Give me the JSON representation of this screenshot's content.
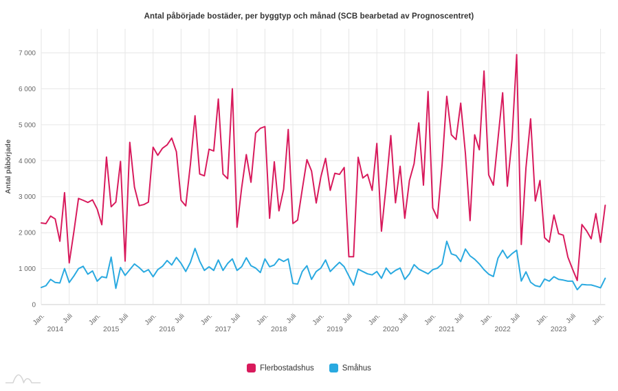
{
  "chart_data": {
    "type": "line",
    "title": "Antal påbörjade bostäder, per byggtyp och månad (SCB bearbetad av Prognoscentret)",
    "xlabel": "",
    "ylabel": "Antal påbörjade",
    "ylim": [
      0,
      7000
    ],
    "grid": true,
    "legend_position": "bottom",
    "x_start": "2014-01",
    "x_end": "2024-02",
    "frequency": "monthly",
    "y_ticks": [
      {
        "value": 0,
        "label": "0"
      },
      {
        "value": 1000,
        "label": "1 000"
      },
      {
        "value": 2000,
        "label": "2 000"
      },
      {
        "value": 3000,
        "label": "3 000"
      },
      {
        "value": 4000,
        "label": "4 000"
      },
      {
        "value": 5000,
        "label": "5 000"
      },
      {
        "value": 6000,
        "label": "6 000"
      },
      {
        "value": 7000,
        "label": "7 000"
      }
    ],
    "x_axis": {
      "tick_labels": [
        "Jan.",
        "Juli",
        "Jan.",
        "Juli",
        "Jan.",
        "Juli",
        "Jan.",
        "Juli",
        "Jan.",
        "Juli",
        "Jan.",
        "Juli",
        "Jan.",
        "Juli",
        "Jan.",
        "Juli",
        "Jan.",
        "Juli",
        "Jan.",
        "Juli",
        "Jan."
      ],
      "year_labels": [
        "2014",
        "2015",
        "2016",
        "2017",
        "2018",
        "2019",
        "2020",
        "2021",
        "2022",
        "2023"
      ]
    },
    "series": [
      {
        "name": "Flerbostadshus",
        "color": "#D81A5C",
        "values": [
          2270,
          2250,
          2460,
          2380,
          1760,
          3110,
          1160,
          2030,
          2950,
          2900,
          2840,
          2910,
          2655,
          2220,
          4100,
          2720,
          2850,
          3980,
          1210,
          4510,
          3265,
          2750,
          2780,
          2850,
          4375,
          4150,
          4345,
          4440,
          4630,
          4250,
          2900,
          2745,
          3900,
          5250,
          3630,
          3580,
          4320,
          4270,
          5715,
          3630,
          3500,
          6000,
          2150,
          3240,
          4170,
          3400,
          4770,
          4900,
          4950,
          2400,
          3970,
          2605,
          3210,
          4870,
          2255,
          2350,
          3205,
          4030,
          3715,
          2825,
          3555,
          4065,
          3175,
          3650,
          3620,
          3810,
          1330,
          1330,
          4095,
          3520,
          3620,
          3175,
          4480,
          2040,
          3300,
          4700,
          2830,
          3845,
          2400,
          3450,
          3920,
          5050,
          3320,
          5925,
          2685,
          2400,
          3890,
          5790,
          4720,
          4590,
          5600,
          4210,
          2335,
          4720,
          4305,
          6495,
          3605,
          3320,
          4600,
          5890,
          3290,
          4590,
          6950,
          1670,
          3800,
          5165,
          2880,
          3450,
          1860,
          1735,
          2490,
          1970,
          1930,
          1320,
          985,
          670,
          2225,
          2050,
          1830,
          2530,
          1730,
          2760
        ]
      },
      {
        "name": "Småhus",
        "color": "#29A9E0",
        "values": [
          475,
          525,
          700,
          615,
          600,
          1000,
          615,
          795,
          1000,
          1065,
          845,
          935,
          650,
          775,
          745,
          1320,
          450,
          1030,
          810,
          970,
          1130,
          1030,
          905,
          970,
          775,
          970,
          1065,
          1225,
          1100,
          1310,
          1145,
          920,
          1175,
          1560,
          1205,
          950,
          1050,
          950,
          1240,
          950,
          1145,
          1270,
          950,
          1050,
          1300,
          1080,
          1015,
          890,
          1270,
          1050,
          1100,
          1270,
          1200,
          1270,
          590,
          570,
          920,
          1080,
          700,
          920,
          1015,
          1240,
          920,
          1050,
          1175,
          1050,
          795,
          540,
          985,
          920,
          855,
          825,
          920,
          730,
          1015,
          855,
          950,
          1015,
          700,
          855,
          1110,
          985,
          920,
          855,
          970,
          1010,
          1130,
          1760,
          1410,
          1365,
          1195,
          1545,
          1355,
          1260,
          1130,
          970,
          845,
          780,
          1290,
          1510,
          1290,
          1415,
          1510,
          655,
          910,
          620,
          527,
          495,
          710,
          650,
          775,
          700,
          680,
          650,
          650,
          413,
          560,
          550,
          545,
          510,
          465,
          730
        ]
      }
    ]
  },
  "logo": {
    "name": "prognoscentret-mountain-logo",
    "color": "#d6d6d6"
  }
}
